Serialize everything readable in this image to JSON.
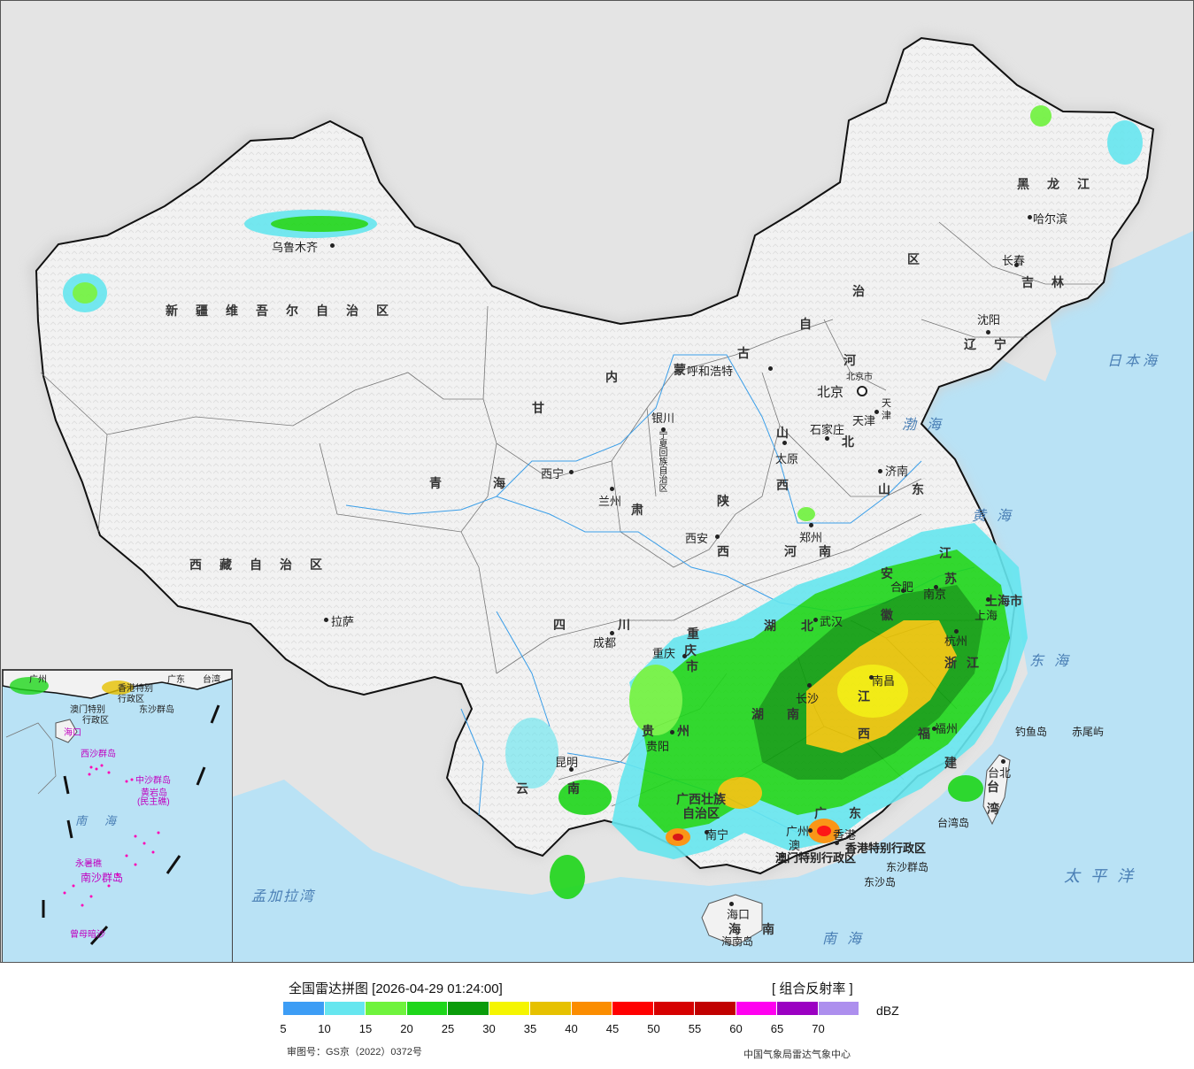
{
  "map": {
    "provinces": {
      "xinjiang": "新疆维吾尔自治区",
      "xizang": "西藏自治区",
      "qinghai_a": "青",
      "qinghai_b": "海",
      "gansu": "甘",
      "sichuan_a": "四",
      "sichuan_b": "川",
      "yunnan_a": "云",
      "yunnan_b": "南",
      "guizhou_a": "贵",
      "guizhou_b": "州",
      "neimeng_a": "内",
      "neimeng_b": "蒙",
      "neimeng_c": "古",
      "neimeng_d": "自",
      "neimeng_e": "治",
      "neimeng_f": "区",
      "heilongjiang": "黑龙江",
      "jilin": "吉林",
      "liaoning": "辽宁",
      "hebei_a": "河",
      "hebei_b": "北",
      "shanxi_a": "山",
      "shanxi_b": "西",
      "shaanxi_a": "陕",
      "shaanxi_b": "西",
      "henan_a": "河",
      "henan_b": "南",
      "shandong_a": "山",
      "shandong_b": "东",
      "hubei_a": "湖",
      "hubei_b": "北",
      "hunan_a": "湖",
      "hunan_b": "南",
      "jiangxi_a": "江",
      "jiangxi_b": "西",
      "anhui_a": "安",
      "anhui_b": "徽",
      "jiangsu_a": "江",
      "jiangsu_b": "苏",
      "zhejiang_a": "浙",
      "zhejiang_b": "江",
      "fujian_a": "福",
      "fujian_b": "建",
      "guangdong_a": "广",
      "guangdong_b": "东",
      "guangxi_a": "广西壮族",
      "guangxi_b": "自治区",
      "hainan_a": "海",
      "hainan_b": "南",
      "ningxia": "宁夏回族自治区",
      "chongqing_a": "重",
      "chongqing_b": "庆",
      "chongqing_c": "市",
      "shanghai": "上海市",
      "taiwan_a": "台",
      "taiwan_b": "湾",
      "gansu_b": "肃",
      "hongkong": "香港特别行政区",
      "macau": "澳门特别行政区",
      "beijing": "北京市",
      "tianjin_a": "天",
      "tianjin_b": "津"
    },
    "cities": {
      "urumqi": "乌鲁木齐",
      "lhasa": "拉萨",
      "xining": "西宁",
      "lanzhou": "兰州",
      "yinchuan": "银川",
      "huhehaote": "呼和浩特",
      "beijing": "北京",
      "tianjin": "天津",
      "shijiazhuang": "石家庄",
      "taiyuan": "太原",
      "jinan": "济南",
      "zhengzhou": "郑州",
      "xian": "西安",
      "chengdu": "成都",
      "chongqing": "重庆",
      "wuhan": "武汉",
      "hefei": "合肥",
      "nanjing": "南京",
      "shanghai": "上海",
      "hangzhou": "杭州",
      "nanchang": "南昌",
      "changsha": "长沙",
      "fuzhou": "福州",
      "guiyang": "贵阳",
      "kunming": "昆明",
      "nanning": "南宁",
      "guangzhou": "广州",
      "aomen": "澳",
      "xianggang": "香港",
      "haikou": "海口",
      "taibei": "台北",
      "shenyang": "沈阳",
      "changchun": "长春",
      "haerbin": "哈尔滨"
    },
    "islands": {
      "diaoyu": "钓鱼岛",
      "chiwei": "赤尾屿",
      "taiwan_island": "台湾岛",
      "dongsha_qundao": "东沙群岛",
      "dongsha_dao": "东沙岛",
      "hainan_dao": "海南岛"
    },
    "seas": {
      "bohai": "渤海",
      "huanghai": "黄海",
      "donghai": "东海",
      "nanhai": "南海",
      "taipingyang": "太平洋",
      "ribenhai": "日本海",
      "mengjialawan": "孟加拉湾"
    },
    "inset": {
      "nanhai": "南海",
      "xisha": "西沙群岛",
      "zhongsha": "中沙群岛",
      "huangyan": "黄岩岛",
      "huangyan_sub": "(民主礁)",
      "nansha": "南沙群岛",
      "yongshu": "永暑礁",
      "zengmu": "曾母暗沙",
      "haikou": "海口",
      "xianggang": "香港特别",
      "xianggang2": "行政区",
      "aomen": "澳门特别",
      "aomen2": "行政区",
      "dongsha": "东沙群岛",
      "taiwan": "台湾",
      "guangzhou": "广州",
      "guangdong": "广东"
    }
  },
  "legend": {
    "title": "全国雷达拼图 [2026-04-29 01:24:00]",
    "product": "[ 组合反射率 ]",
    "unit": "dBZ",
    "ticks": [
      "5",
      "10",
      "15",
      "20",
      "25",
      "30",
      "35",
      "40",
      "45",
      "50",
      "55",
      "60",
      "65",
      "70"
    ],
    "colors": [
      "#3d9df5",
      "#66e6ef",
      "#6ff33d",
      "#1ed61a",
      "#0a9c0a",
      "#f5f500",
      "#e6c100",
      "#fb8d00",
      "#ff0000",
      "#d60000",
      "#c10000",
      "#ff00f0",
      "#9b00c2",
      "#ad8fee"
    ],
    "approval": "审图号：GS京（2022）0372号",
    "source": "中国气象局雷达气象中心"
  },
  "colors": {
    "sea": "#b9e2f5",
    "land": "#f2f2f2",
    "outside": "#e4e4e4",
    "border": "#111111"
  }
}
